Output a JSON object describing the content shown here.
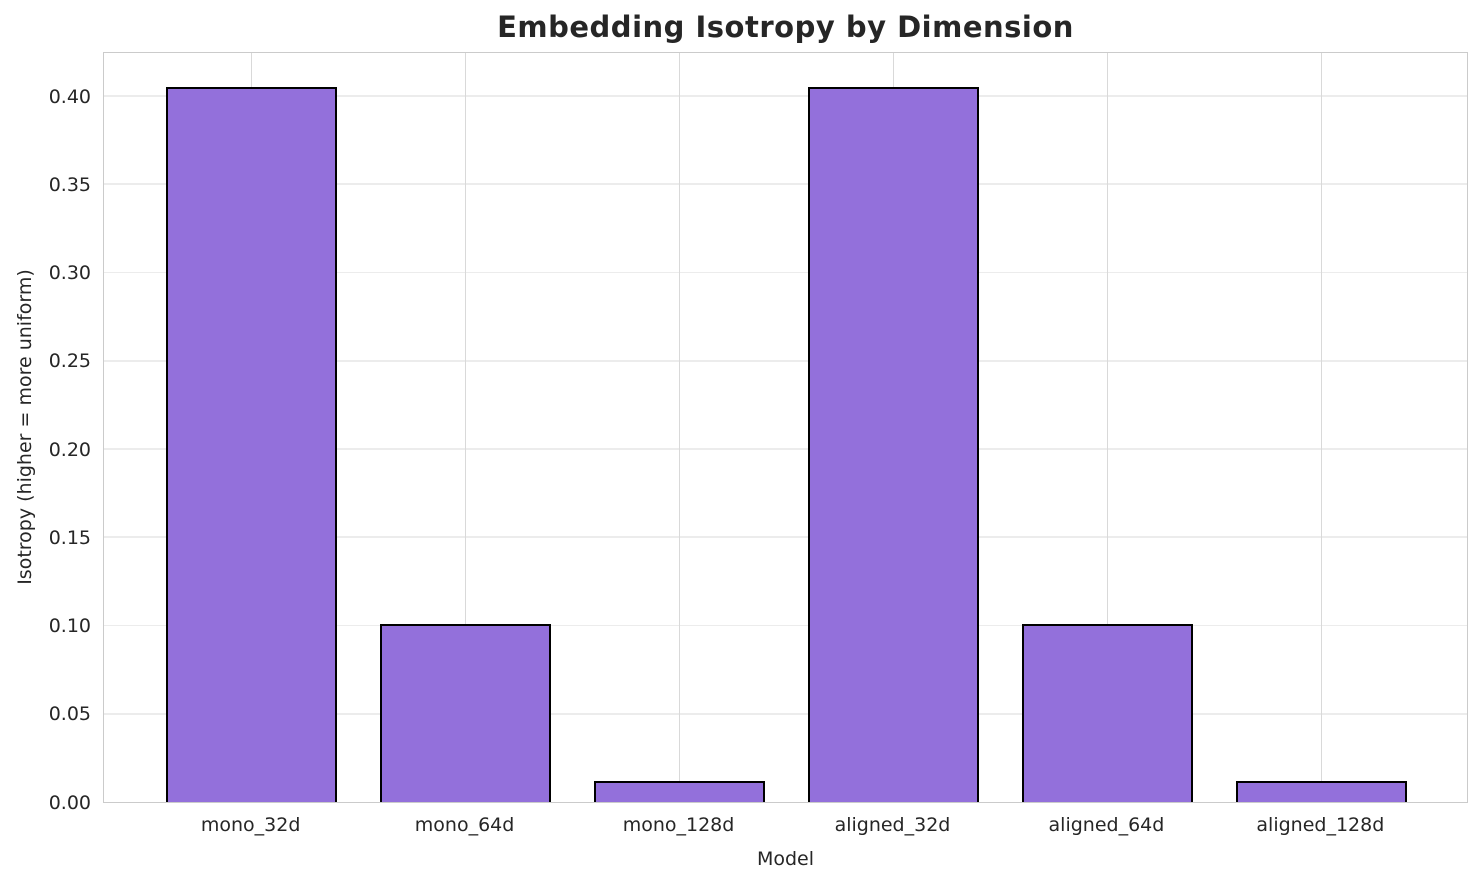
{
  "chart_data": {
    "type": "bar",
    "title": "Embedding Isotropy by Dimension",
    "xlabel": "Model",
    "ylabel": "Isotropy (higher = more uniform)",
    "categories": [
      "mono_32d",
      "mono_64d",
      "mono_128d",
      "aligned_32d",
      "aligned_64d",
      "aligned_128d"
    ],
    "values": [
      0.405,
      0.101,
      0.012,
      0.405,
      0.101,
      0.012
    ],
    "y_tick_labels": [
      "0.00",
      "0.05",
      "0.10",
      "0.15",
      "0.20",
      "0.25",
      "0.30",
      "0.35",
      "0.40"
    ],
    "ylim": [
      0,
      0.4255
    ],
    "xlim": [
      -0.69,
      5.69
    ],
    "bar_width": 0.8,
    "grid": true,
    "legend": "none",
    "colors": {
      "bar_fill": "#9370db",
      "bar_edge": "#000000",
      "grid_horizontal": "#ececec",
      "grid_vertical": "#d9d9d9",
      "spine": "#cbcbcb",
      "text": "#262626"
    }
  }
}
